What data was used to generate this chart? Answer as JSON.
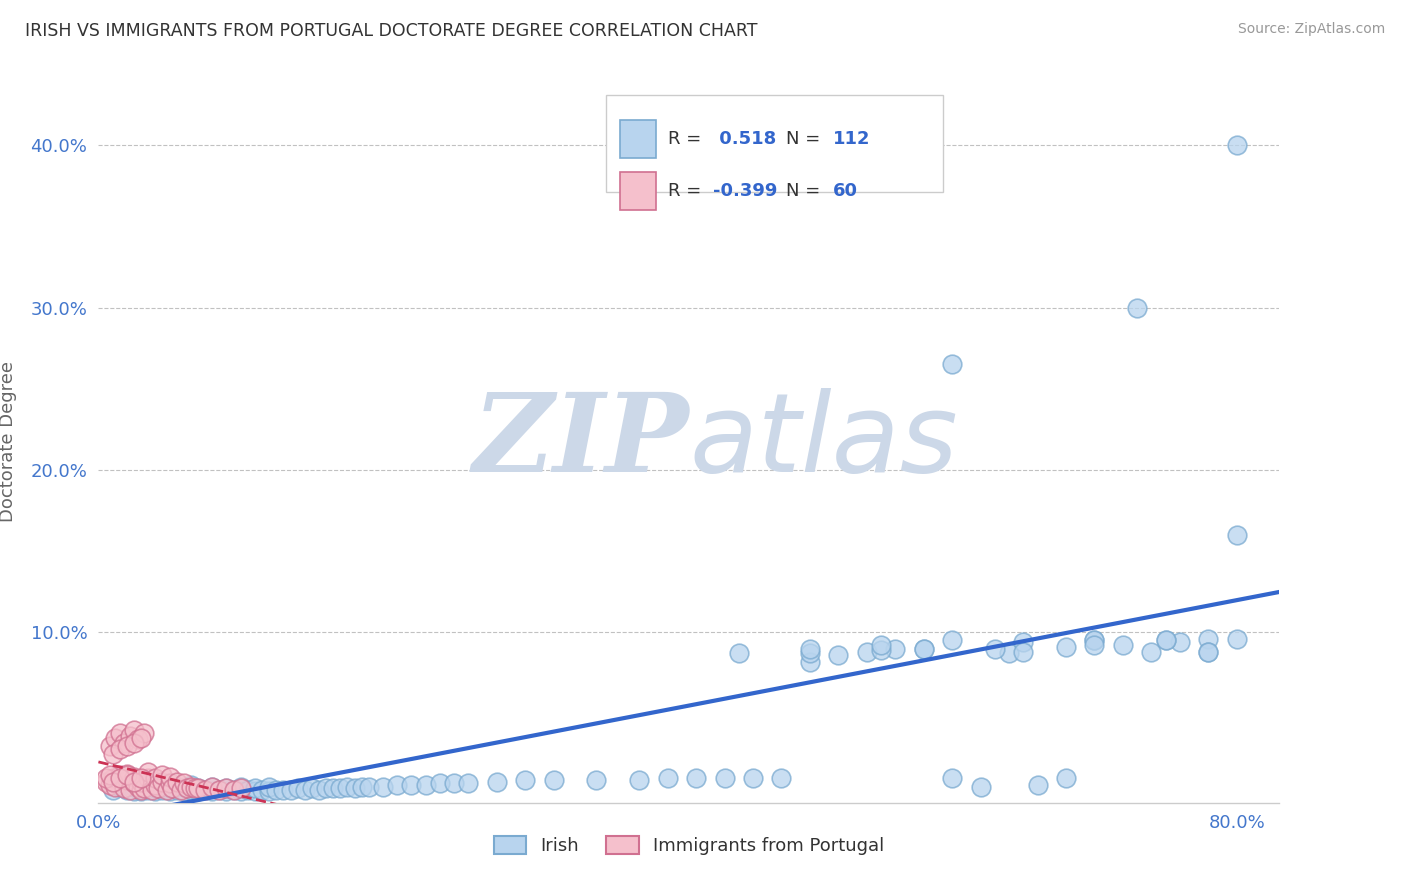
{
  "title": "IRISH VS IMMIGRANTS FROM PORTUGAL DOCTORATE DEGREE CORRELATION CHART",
  "source_text": "Source: ZipAtlas.com",
  "ylabel": "Doctorate Degree",
  "xlim": [
    0.0,
    0.83
  ],
  "ylim": [
    -0.005,
    0.44
  ],
  "irish_R": 0.518,
  "irish_N": 112,
  "portugal_R": -0.399,
  "portugal_N": 60,
  "irish_color": "#b8d4ee",
  "irish_edge_color": "#7aaad0",
  "portugal_color": "#f5c0cc",
  "portugal_edge_color": "#d07090",
  "irish_line_color": "#3366cc",
  "portugal_line_color": "#cc3355",
  "background_color": "#ffffff",
  "grid_color": "#bbbbbb",
  "title_color": "#333333",
  "axis_label_color": "#4477cc",
  "irish_scatter_x": [
    0.01,
    0.015,
    0.02,
    0.02,
    0.025,
    0.025,
    0.03,
    0.03,
    0.03,
    0.035,
    0.035,
    0.04,
    0.04,
    0.04,
    0.045,
    0.045,
    0.05,
    0.05,
    0.05,
    0.055,
    0.055,
    0.06,
    0.06,
    0.065,
    0.065,
    0.07,
    0.07,
    0.075,
    0.08,
    0.08,
    0.085,
    0.09,
    0.09,
    0.095,
    0.1,
    0.1,
    0.105,
    0.11,
    0.11,
    0.115,
    0.12,
    0.12,
    0.125,
    0.13,
    0.135,
    0.14,
    0.145,
    0.15,
    0.155,
    0.16,
    0.165,
    0.17,
    0.175,
    0.18,
    0.185,
    0.19,
    0.2,
    0.21,
    0.22,
    0.23,
    0.24,
    0.25,
    0.26,
    0.28,
    0.3,
    0.32,
    0.35,
    0.38,
    0.4,
    0.42,
    0.44,
    0.46,
    0.48,
    0.5,
    0.52,
    0.54,
    0.56,
    0.58,
    0.6,
    0.62,
    0.64,
    0.66,
    0.68,
    0.7,
    0.72,
    0.74,
    0.76,
    0.78,
    0.8,
    0.5,
    0.55,
    0.6,
    0.65,
    0.68,
    0.7,
    0.73,
    0.75,
    0.78,
    0.8,
    0.45,
    0.5,
    0.55,
    0.58,
    0.6,
    0.63,
    0.65,
    0.7,
    0.75,
    0.78,
    0.8
  ],
  "irish_scatter_y": [
    0.003,
    0.005,
    0.003,
    0.006,
    0.002,
    0.005,
    0.002,
    0.004,
    0.007,
    0.003,
    0.006,
    0.002,
    0.004,
    0.007,
    0.003,
    0.005,
    0.002,
    0.004,
    0.007,
    0.003,
    0.005,
    0.002,
    0.005,
    0.003,
    0.006,
    0.002,
    0.004,
    0.003,
    0.002,
    0.005,
    0.003,
    0.002,
    0.004,
    0.003,
    0.002,
    0.005,
    0.003,
    0.002,
    0.004,
    0.003,
    0.002,
    0.005,
    0.003,
    0.003,
    0.003,
    0.004,
    0.003,
    0.004,
    0.003,
    0.004,
    0.004,
    0.004,
    0.005,
    0.004,
    0.005,
    0.005,
    0.005,
    0.006,
    0.006,
    0.006,
    0.007,
    0.007,
    0.007,
    0.008,
    0.009,
    0.009,
    0.009,
    0.009,
    0.01,
    0.01,
    0.01,
    0.01,
    0.01,
    0.082,
    0.086,
    0.088,
    0.09,
    0.09,
    0.01,
    0.005,
    0.087,
    0.006,
    0.091,
    0.095,
    0.092,
    0.088,
    0.094,
    0.096,
    0.16,
    0.087,
    0.089,
    0.265,
    0.094,
    0.01,
    0.095,
    0.3,
    0.095,
    0.088,
    0.4,
    0.087,
    0.09,
    0.092,
    0.09,
    0.095,
    0.09,
    0.088,
    0.092,
    0.095,
    0.088,
    0.096
  ],
  "portugal_scatter_x": [
    0.005,
    0.008,
    0.01,
    0.012,
    0.015,
    0.018,
    0.02,
    0.02,
    0.022,
    0.025,
    0.025,
    0.028,
    0.03,
    0.03,
    0.032,
    0.035,
    0.035,
    0.038,
    0.04,
    0.04,
    0.042,
    0.045,
    0.045,
    0.048,
    0.05,
    0.05,
    0.052,
    0.055,
    0.058,
    0.06,
    0.062,
    0.065,
    0.068,
    0.07,
    0.075,
    0.08,
    0.085,
    0.09,
    0.095,
    0.1,
    0.008,
    0.012,
    0.015,
    0.018,
    0.022,
    0.025,
    0.028,
    0.032,
    0.01,
    0.015,
    0.02,
    0.025,
    0.03,
    0.005,
    0.008,
    0.01,
    0.015,
    0.02,
    0.025,
    0.03
  ],
  "portugal_scatter_y": [
    0.008,
    0.006,
    0.01,
    0.005,
    0.012,
    0.004,
    0.009,
    0.013,
    0.003,
    0.007,
    0.011,
    0.005,
    0.003,
    0.008,
    0.004,
    0.01,
    0.014,
    0.003,
    0.006,
    0.01,
    0.004,
    0.008,
    0.012,
    0.003,
    0.007,
    0.011,
    0.004,
    0.008,
    0.003,
    0.007,
    0.004,
    0.005,
    0.004,
    0.004,
    0.003,
    0.005,
    0.003,
    0.004,
    0.003,
    0.004,
    0.03,
    0.035,
    0.038,
    0.032,
    0.036,
    0.04,
    0.034,
    0.038,
    0.025,
    0.028,
    0.03,
    0.032,
    0.035,
    0.01,
    0.012,
    0.008,
    0.01,
    0.012,
    0.008,
    0.01
  ]
}
